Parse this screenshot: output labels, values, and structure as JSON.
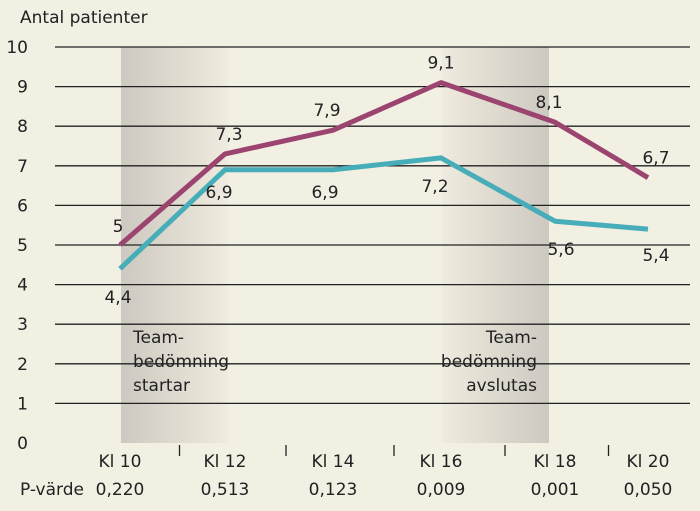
{
  "chart_data": {
    "type": "line",
    "ylabel": "Antal patienter",
    "ylim": [
      0,
      10
    ],
    "yticks": [
      "0",
      "1",
      "2",
      "3",
      "4",
      "5",
      "6",
      "7",
      "8",
      "9",
      "10"
    ],
    "categories": [
      "Kl 10",
      "Kl 12",
      "Kl 14",
      "Kl 16",
      "Kl 18",
      "Kl 20"
    ],
    "series": [
      {
        "color": "#9c4470",
        "values": [
          5,
          7.3,
          7.9,
          9.1,
          8.1,
          6.7
        ],
        "labels": [
          "5",
          "7,3",
          "7,9",
          "9,1",
          "8,1",
          "6,7"
        ]
      },
      {
        "color": "#47adb8",
        "values": [
          4.4,
          6.9,
          6.9,
          7.2,
          5.6,
          5.4
        ],
        "labels": [
          "4,4",
          "6,9",
          "6,9",
          "7,2",
          "5,6",
          "5,4"
        ]
      }
    ],
    "pvalue_label": "P-värde",
    "pvalues": [
      "0,220",
      "0,513",
      "0,123",
      "0,009",
      "0,001",
      "0,050"
    ],
    "annotations": [
      {
        "lines": [
          "Team-",
          "bedömning",
          "startar"
        ]
      },
      {
        "lines": [
          "Team-",
          "bedömning",
          "avslutas"
        ]
      }
    ],
    "grid": true
  }
}
